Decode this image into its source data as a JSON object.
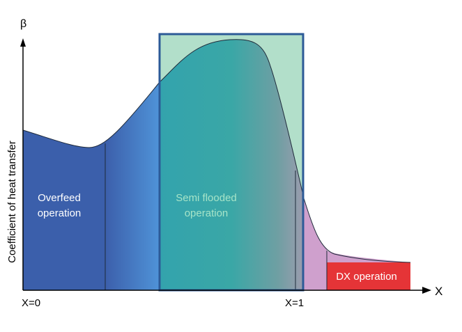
{
  "axes": {
    "y_symbol": "β",
    "x_symbol": "X",
    "y_label": "Coefficient of heat transfer",
    "x_tick_start": "X=0",
    "x_tick_end": "X=1"
  },
  "regions": {
    "overfeed": {
      "line1": "Overfeed",
      "line2": "operation"
    },
    "semi_flooded": {
      "line1": "Semi flooded",
      "line2": "operation"
    },
    "dx": {
      "label": "DX operation"
    }
  },
  "colors": {
    "overfeed_blue": "#3b5fab",
    "transition_blue": "#4f8ed6",
    "semi_flooded_teal": "#3aa6a8",
    "semi_flooded_fill": "#b2dfca",
    "semi_flooded_text": "#a6e4c8",
    "frame_border": "#2c5a97",
    "transition_pink": "#cfa0cd",
    "dx_red": "#e53437",
    "white_text": "#ffffff"
  }
}
